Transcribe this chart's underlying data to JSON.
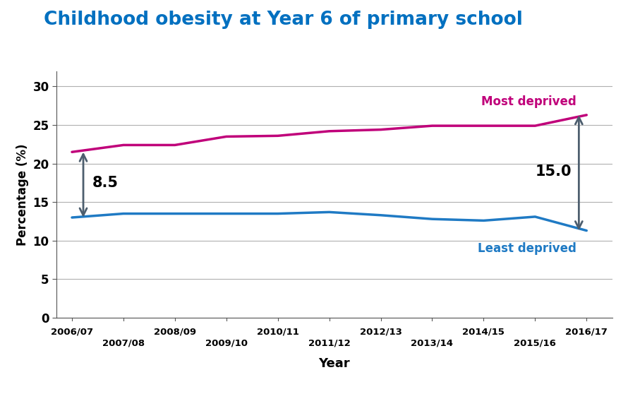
{
  "title": "Childhood obesity at Year 6 of primary school",
  "title_color": "#0070C0",
  "xlabel": "Year",
  "ylabel": "Percentage (%)",
  "background_color": "#ffffff",
  "x_labels_top": [
    "2006/07",
    "2008/09",
    "2010/11",
    "2012/13",
    "2014/15",
    "2016/17"
  ],
  "x_labels_bot": [
    "2007/08",
    "2009/10",
    "2011/12",
    "2013/14",
    "2015/16"
  ],
  "x_positions_top": [
    0,
    2,
    4,
    6,
    8,
    10
  ],
  "x_positions_bot": [
    1,
    3,
    5,
    7,
    9
  ],
  "most_deprived": [
    21.5,
    22.4,
    22.4,
    23.5,
    23.6,
    24.2,
    24.4,
    24.9,
    24.9,
    24.9,
    26.3
  ],
  "least_deprived": [
    13.0,
    13.5,
    13.5,
    13.5,
    13.5,
    13.7,
    13.3,
    12.8,
    12.6,
    13.1,
    11.3
  ],
  "most_deprived_color": "#C0007A",
  "least_deprived_color": "#1F7AC4",
  "arrow_color": "#4D5E6E",
  "ylim": [
    0,
    32
  ],
  "yticks": [
    0,
    5,
    10,
    15,
    20,
    25,
    30
  ],
  "gap_start_label": "8.5",
  "gap_end_label": "15.0",
  "most_deprived_label": "Most deprived",
  "least_deprived_label": "Least deprived",
  "line_width": 2.5,
  "grid_color": "#b0b0b0"
}
